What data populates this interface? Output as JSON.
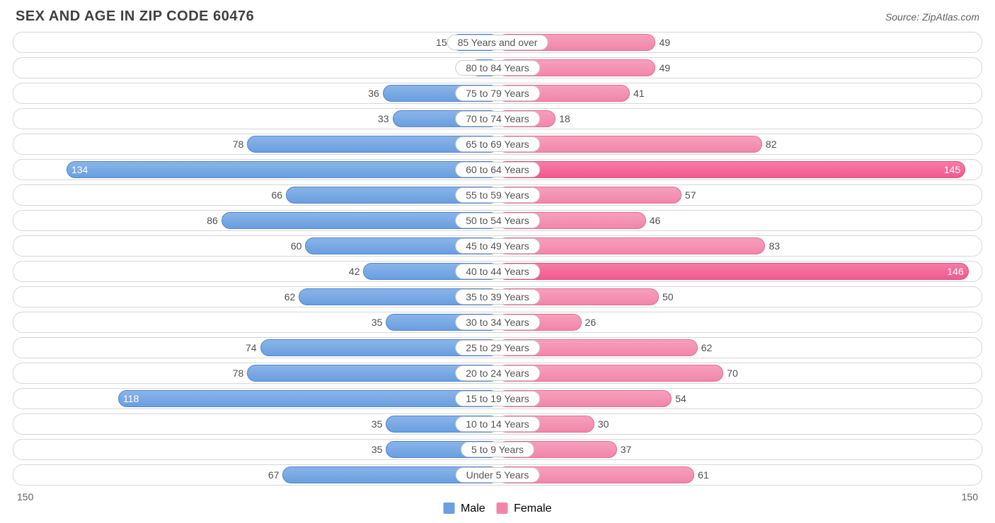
{
  "title": "SEX AND AGE IN ZIP CODE 60476",
  "source": "Source: ZipAtlas.com",
  "chart": {
    "type": "diverging-bar",
    "axis_max": 150,
    "axis_label_left": "150",
    "axis_label_right": "150",
    "male_color": "#6a9fe0",
    "female_color": "#f186aa",
    "female_hot_color": "#f05a8e",
    "row_border_color": "#d7d7d7",
    "background_color": "#ffffff",
    "label_fontsize": 14,
    "title_fontsize": 20,
    "legend": {
      "male": "Male",
      "female": "Female"
    },
    "rows": [
      {
        "category": "85 Years and over",
        "male": 15,
        "female": 49,
        "hot": false
      },
      {
        "category": "80 to 84 Years",
        "male": 9,
        "female": 49,
        "hot": false
      },
      {
        "category": "75 to 79 Years",
        "male": 36,
        "female": 41,
        "hot": false
      },
      {
        "category": "70 to 74 Years",
        "male": 33,
        "female": 18,
        "hot": false
      },
      {
        "category": "65 to 69 Years",
        "male": 78,
        "female": 82,
        "hot": false
      },
      {
        "category": "60 to 64 Years",
        "male": 134,
        "female": 145,
        "hot": true
      },
      {
        "category": "55 to 59 Years",
        "male": 66,
        "female": 57,
        "hot": false
      },
      {
        "category": "50 to 54 Years",
        "male": 86,
        "female": 46,
        "hot": false
      },
      {
        "category": "45 to 49 Years",
        "male": 60,
        "female": 83,
        "hot": false
      },
      {
        "category": "40 to 44 Years",
        "male": 42,
        "female": 146,
        "hot": true
      },
      {
        "category": "35 to 39 Years",
        "male": 62,
        "female": 50,
        "hot": false
      },
      {
        "category": "30 to 34 Years",
        "male": 35,
        "female": 26,
        "hot": false
      },
      {
        "category": "25 to 29 Years",
        "male": 74,
        "female": 62,
        "hot": false
      },
      {
        "category": "20 to 24 Years",
        "male": 78,
        "female": 70,
        "hot": false
      },
      {
        "category": "15 to 19 Years",
        "male": 118,
        "female": 54,
        "hot": false
      },
      {
        "category": "10 to 14 Years",
        "male": 35,
        "female": 30,
        "hot": false
      },
      {
        "category": "5 to 9 Years",
        "male": 35,
        "female": 37,
        "hot": false
      },
      {
        "category": "Under 5 Years",
        "male": 67,
        "female": 61,
        "hot": false
      }
    ]
  }
}
